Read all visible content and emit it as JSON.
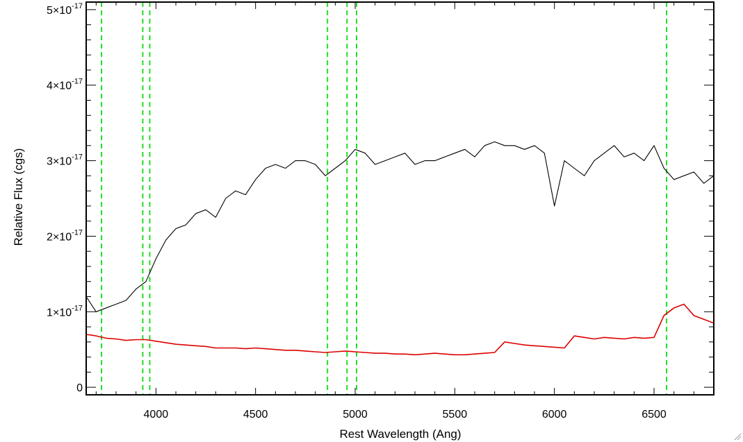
{
  "chart_data": {
    "type": "line",
    "title": "",
    "xlabel": "Rest Wavelength (Ang)",
    "ylabel": "Relative Flux (cgs)",
    "xlim": [
      3650,
      6800
    ],
    "ylim": [
      -1e-18,
      5.1e-17
    ],
    "x_ticks": [
      4000,
      4500,
      5000,
      5500,
      6000,
      6500
    ],
    "x_tick_labels": [
      "4000",
      "4500",
      "5000",
      "5500",
      "6000",
      "6500"
    ],
    "y_ticks": [
      0,
      1e-17,
      2e-17,
      3e-17,
      4e-17,
      5e-17
    ],
    "y_tick_labels": [
      {
        "base": "0",
        "exp": ""
      },
      {
        "base": "1×10",
        "exp": "-17"
      },
      {
        "base": "2×10",
        "exp": "-17"
      },
      {
        "base": "3×10",
        "exp": "-17"
      },
      {
        "base": "4×10",
        "exp": "-17"
      },
      {
        "base": "5×10",
        "exp": "-17"
      }
    ],
    "grid": false,
    "legend": "none",
    "series": [
      {
        "role": "flux",
        "color": "#000000",
        "x": [
          3650,
          3700,
          3750,
          3800,
          3850,
          3900,
          3950,
          4000,
          4050,
          4100,
          4150,
          4200,
          4250,
          4300,
          4350,
          4400,
          4450,
          4500,
          4550,
          4600,
          4650,
          4700,
          4750,
          4800,
          4850,
          4900,
          4950,
          5000,
          5050,
          5100,
          5150,
          5200,
          5250,
          5300,
          5350,
          5400,
          5450,
          5500,
          5550,
          5600,
          5650,
          5700,
          5750,
          5800,
          5850,
          5900,
          5950,
          6000,
          6050,
          6100,
          6150,
          6200,
          6250,
          6300,
          6350,
          6400,
          6450,
          6500,
          6550,
          6600,
          6650,
          6700,
          6750,
          6800
        ],
        "y": [
          1.2e-17,
          1e-17,
          1.05e-17,
          1.1e-17,
          1.15e-17,
          1.3e-17,
          1.4e-17,
          1.7e-17,
          1.95e-17,
          2.1e-17,
          2.15e-17,
          2.3e-17,
          2.35e-17,
          2.25e-17,
          2.5e-17,
          2.6e-17,
          2.55e-17,
          2.75e-17,
          2.9e-17,
          2.95e-17,
          2.9e-17,
          3e-17,
          3e-17,
          2.95e-17,
          2.8e-17,
          2.9e-17,
          3e-17,
          3.15e-17,
          3.1e-17,
          2.95e-17,
          3e-17,
          3.05e-17,
          3.1e-17,
          2.95e-17,
          3e-17,
          3e-17,
          3.05e-17,
          3.1e-17,
          3.15e-17,
          3.05e-17,
          3.2e-17,
          3.25e-17,
          3.2e-17,
          3.2e-17,
          3.15e-17,
          3.2e-17,
          3.1e-17,
          2.4e-17,
          3e-17,
          2.9e-17,
          2.8e-17,
          3e-17,
          3.1e-17,
          3.2e-17,
          3.05e-17,
          3.1e-17,
          3e-17,
          3.2e-17,
          2.9e-17,
          2.75e-17,
          2.8e-17,
          2.85e-17,
          2.7e-17,
          2.8e-17
        ]
      },
      {
        "role": "error",
        "color": "#dd0000",
        "x": [
          3650,
          3700,
          3750,
          3800,
          3850,
          3900,
          3950,
          4000,
          4050,
          4100,
          4150,
          4200,
          4250,
          4300,
          4350,
          4400,
          4450,
          4500,
          4550,
          4600,
          4650,
          4700,
          4750,
          4800,
          4850,
          4900,
          4950,
          5000,
          5050,
          5100,
          5150,
          5200,
          5250,
          5300,
          5350,
          5400,
          5450,
          5500,
          5550,
          5600,
          5650,
          5700,
          5750,
          5800,
          5850,
          5900,
          5950,
          6000,
          6050,
          6100,
          6150,
          6200,
          6250,
          6300,
          6350,
          6400,
          6450,
          6500,
          6550,
          6600,
          6650,
          6700,
          6750,
          6800
        ],
        "y": [
          7e-18,
          6.8e-18,
          6.5e-18,
          6.4e-18,
          6.2e-18,
          6.3e-18,
          6.3e-18,
          6.1e-18,
          5.9e-18,
          5.7e-18,
          5.6e-18,
          5.5e-18,
          5.4e-18,
          5.2e-18,
          5.2e-18,
          5.2e-18,
          5.1e-18,
          5.2e-18,
          5.1e-18,
          5e-18,
          4.9e-18,
          4.9e-18,
          4.8e-18,
          4.7e-18,
          4.6e-18,
          4.7e-18,
          4.8e-18,
          4.7e-18,
          4.6e-18,
          4.5e-18,
          4.5e-18,
          4.4e-18,
          4.4e-18,
          4.3e-18,
          4.4e-18,
          4.5e-18,
          4.4e-18,
          4.3e-18,
          4.3e-18,
          4.4e-18,
          4.5e-18,
          4.6e-18,
          6e-18,
          5.8e-18,
          5.6e-18,
          5.5e-18,
          5.4e-18,
          5.3e-18,
          5.2e-18,
          6.8e-18,
          6.6e-18,
          6.4e-18,
          6.6e-18,
          6.5e-18,
          6.4e-18,
          6.6e-18,
          6.5e-18,
          6.6e-18,
          9.5e-18,
          1.05e-17,
          1.1e-17,
          9.5e-18,
          9e-18,
          8.5e-18
        ]
      }
    ],
    "vertical_lines": {
      "color": "#22dd22",
      "style": "dashed",
      "x": [
        3727,
        3934,
        3969,
        4861,
        4959,
        5007,
        6563
      ]
    }
  }
}
